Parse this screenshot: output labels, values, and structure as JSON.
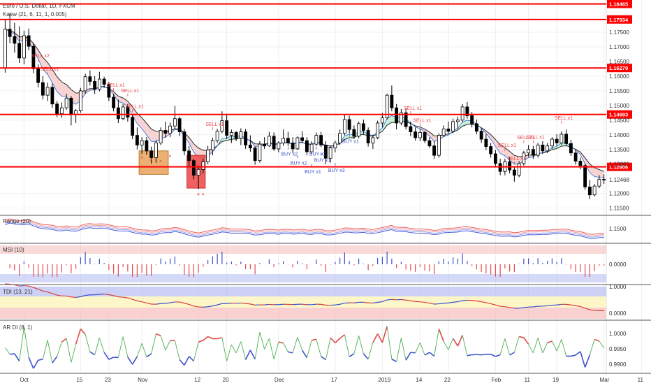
{
  "chart_data": {
    "type": "candlestick",
    "title": "Euro / U.S. Dollar, 1D, FXCM",
    "overlay_label": "Kaew (21, 6, 11, 1, 0.005)",
    "colors": {
      "up": "#ffffff",
      "down": "#000000",
      "wick": "#000000",
      "level_line": "#ff0000",
      "level_tag": "#ff0000",
      "cloud_bull": "#c9efd5",
      "cloud_bear": "#f7d3d3",
      "sell": "#e8474a",
      "buy": "#3c52c8",
      "zone_orange": "#e8a25a",
      "zone_red": "#ef4f4f",
      "band_red": "#f6b3b3",
      "band_blue": "#aab3ef",
      "band_yellow": "#fdf6c8"
    },
    "price_axis": {
      "range": [
        1.113,
        1.1855
      ],
      "ticks": [
        1.175,
        1.17,
        1.165,
        1.16,
        1.155,
        1.15,
        1.145,
        1.14,
        1.135,
        1.13,
        1.12,
        1.115
      ]
    },
    "levels": [
      1.18465,
      1.17934,
      1.16279,
      1.14693,
      1.12906
    ],
    "current_price_tag": 1.12468,
    "x_tick_labels": [
      "Oct",
      "15",
      "23",
      "Nov",
      "12",
      "20",
      "Dec",
      "17",
      "2019",
      "14",
      "22",
      "Feb",
      "11",
      "19",
      "Mar",
      "11"
    ],
    "x_tick_index": [
      4,
      16,
      22,
      29,
      41,
      47,
      58,
      70,
      80,
      88,
      94,
      104,
      111,
      117,
      127,
      135
    ],
    "candles": [
      [
        1.1628,
        1.1795,
        1.1612,
        1.176
      ],
      [
        1.176,
        1.1815,
        1.1712,
        1.1735
      ],
      [
        1.1735,
        1.1782,
        1.168,
        1.1712
      ],
      [
        1.1712,
        1.177,
        1.1645,
        1.1662
      ],
      [
        1.1662,
        1.1755,
        1.164,
        1.1738
      ],
      [
        1.1738,
        1.1762,
        1.1688,
        1.1702
      ],
      [
        1.1702,
        1.1712,
        1.161,
        1.1625
      ],
      [
        1.1625,
        1.164,
        1.1562,
        1.1578
      ],
      [
        1.1578,
        1.16,
        1.152,
        1.1535
      ],
      [
        1.1535,
        1.1578,
        1.1515,
        1.1562
      ],
      [
        1.1562,
        1.1575,
        1.1492,
        1.1505
      ],
      [
        1.1505,
        1.1515,
        1.146,
        1.1472
      ],
      [
        1.1472,
        1.151,
        1.1458,
        1.1492
      ],
      [
        1.1492,
        1.154,
        1.1485,
        1.1525
      ],
      [
        1.1525,
        1.1532,
        1.1432,
        1.147
      ],
      [
        1.147,
        1.1488,
        1.144,
        1.1482
      ],
      [
        1.1482,
        1.156,
        1.1475,
        1.155
      ],
      [
        1.155,
        1.1608,
        1.154,
        1.1598
      ],
      [
        1.1598,
        1.162,
        1.1568,
        1.1582
      ],
      [
        1.1582,
        1.16,
        1.154,
        1.1555
      ],
      [
        1.1555,
        1.1615,
        1.1548,
        1.159
      ],
      [
        1.159,
        1.1598,
        1.156,
        1.1572
      ],
      [
        1.1572,
        1.158,
        1.1515,
        1.1528
      ],
      [
        1.1528,
        1.154,
        1.148,
        1.1492
      ],
      [
        1.1492,
        1.152,
        1.144,
        1.1455
      ],
      [
        1.1455,
        1.1505,
        1.145,
        1.1495
      ],
      [
        1.1495,
        1.1505,
        1.1445,
        1.146
      ],
      [
        1.146,
        1.1468,
        1.1385,
        1.1398
      ],
      [
        1.1398,
        1.1425,
        1.135,
        1.1365
      ],
      [
        1.1365,
        1.1392,
        1.1335,
        1.138
      ],
      [
        1.138,
        1.1392,
        1.1332,
        1.1345
      ],
      [
        1.1345,
        1.136,
        1.1302,
        1.1322
      ],
      [
        1.1322,
        1.1382,
        1.1305,
        1.1372
      ],
      [
        1.1372,
        1.1425,
        1.1365,
        1.1415
      ],
      [
        1.1415,
        1.1445,
        1.139,
        1.1405
      ],
      [
        1.1405,
        1.1442,
        1.1392,
        1.143
      ],
      [
        1.143,
        1.1498,
        1.142,
        1.1455
      ],
      [
        1.1455,
        1.1462,
        1.1395,
        1.141
      ],
      [
        1.141,
        1.142,
        1.133,
        1.1345
      ],
      [
        1.1345,
        1.1362,
        1.129,
        1.1312
      ],
      [
        1.1312,
        1.1318,
        1.1248,
        1.1262
      ],
      [
        1.1262,
        1.1295,
        1.1215,
        1.1282
      ],
      [
        1.1282,
        1.1318,
        1.1268,
        1.1308
      ],
      [
        1.1308,
        1.1362,
        1.13,
        1.1348
      ],
      [
        1.1348,
        1.139,
        1.133,
        1.138
      ],
      [
        1.138,
        1.142,
        1.1372,
        1.1412
      ],
      [
        1.1412,
        1.148,
        1.1405,
        1.1448
      ],
      [
        1.1448,
        1.1472,
        1.1385,
        1.1398
      ],
      [
        1.1398,
        1.1418,
        1.1372,
        1.1408
      ],
      [
        1.1408,
        1.1412,
        1.1378,
        1.1388
      ],
      [
        1.1388,
        1.1422,
        1.1365,
        1.141
      ],
      [
        1.141,
        1.142,
        1.1352,
        1.1365
      ],
      [
        1.1365,
        1.1398,
        1.1342,
        1.1355
      ],
      [
        1.1355,
        1.136,
        1.1298,
        1.1312
      ],
      [
        1.1312,
        1.1378,
        1.1305,
        1.1368
      ],
      [
        1.1368,
        1.1392,
        1.1352,
        1.1362
      ],
      [
        1.1362,
        1.141,
        1.1358,
        1.1395
      ],
      [
        1.1395,
        1.1408,
        1.1345,
        1.1352
      ],
      [
        1.1352,
        1.1378,
        1.134,
        1.1372
      ],
      [
        1.1372,
        1.1418,
        1.1362,
        1.1388
      ],
      [
        1.1388,
        1.141,
        1.1362,
        1.1372
      ],
      [
        1.1372,
        1.1392,
        1.1338,
        1.1352
      ],
      [
        1.1352,
        1.1395,
        1.1348,
        1.139
      ],
      [
        1.139,
        1.1412,
        1.1372,
        1.138
      ],
      [
        1.138,
        1.1392,
        1.133,
        1.1342
      ],
      [
        1.1342,
        1.1378,
        1.1335,
        1.1368
      ],
      [
        1.1368,
        1.1408,
        1.1362,
        1.1398
      ],
      [
        1.1398,
        1.141,
        1.1358,
        1.1365
      ],
      [
        1.1365,
        1.1378,
        1.13,
        1.132
      ],
      [
        1.132,
        1.1362,
        1.1305,
        1.1355
      ],
      [
        1.1355,
        1.138,
        1.134,
        1.1372
      ],
      [
        1.1372,
        1.1418,
        1.1365,
        1.1405
      ],
      [
        1.1405,
        1.147,
        1.1398,
        1.1452
      ],
      [
        1.1452,
        1.1465,
        1.1405,
        1.1418
      ],
      [
        1.1418,
        1.1432,
        1.1385,
        1.1395
      ],
      [
        1.1395,
        1.1445,
        1.1388,
        1.1438
      ],
      [
        1.1438,
        1.1452,
        1.1402,
        1.1415
      ],
      [
        1.1415,
        1.1425,
        1.136,
        1.1372
      ],
      [
        1.1372,
        1.14,
        1.1352,
        1.139
      ],
      [
        1.139,
        1.1448,
        1.1385,
        1.144
      ],
      [
        1.144,
        1.1475,
        1.1425,
        1.1458
      ],
      [
        1.1458,
        1.154,
        1.1452,
        1.1535
      ],
      [
        1.1535,
        1.1568,
        1.148,
        1.1492
      ],
      [
        1.1492,
        1.1505,
        1.1418,
        1.144
      ],
      [
        1.144,
        1.1488,
        1.1432,
        1.1475
      ],
      [
        1.1475,
        1.149,
        1.1418,
        1.1428
      ],
      [
        1.1428,
        1.1445,
        1.1395,
        1.141
      ],
      [
        1.141,
        1.1425,
        1.138,
        1.139
      ],
      [
        1.139,
        1.142,
        1.1378,
        1.1408
      ],
      [
        1.1408,
        1.1412,
        1.1372,
        1.138
      ],
      [
        1.138,
        1.1392,
        1.1355,
        1.1362
      ],
      [
        1.1362,
        1.1378,
        1.1318,
        1.133
      ],
      [
        1.133,
        1.1405,
        1.1322,
        1.1398
      ],
      [
        1.1398,
        1.1432,
        1.1392,
        1.142
      ],
      [
        1.142,
        1.1445,
        1.1405,
        1.1412
      ],
      [
        1.1412,
        1.1455,
        1.1405,
        1.1445
      ],
      [
        1.1445,
        1.1462,
        1.142,
        1.145
      ],
      [
        1.145,
        1.1505,
        1.1442,
        1.1495
      ],
      [
        1.1495,
        1.1512,
        1.1455,
        1.1465
      ],
      [
        1.1465,
        1.1478,
        1.1425,
        1.1438
      ],
      [
        1.1438,
        1.1452,
        1.1402,
        1.1412
      ],
      [
        1.1412,
        1.1422,
        1.1372,
        1.1385
      ],
      [
        1.1385,
        1.1402,
        1.1348,
        1.136
      ],
      [
        1.136,
        1.1372,
        1.1322,
        1.1335
      ],
      [
        1.1335,
        1.1348,
        1.129,
        1.1302
      ],
      [
        1.1302,
        1.1318,
        1.1262,
        1.1275
      ],
      [
        1.1275,
        1.1318,
        1.1262,
        1.1308
      ],
      [
        1.1308,
        1.1325,
        1.1268,
        1.128
      ],
      [
        1.128,
        1.129,
        1.124,
        1.1262
      ],
      [
        1.1262,
        1.131,
        1.1255,
        1.1302
      ],
      [
        1.1302,
        1.1345,
        1.1295,
        1.1338
      ],
      [
        1.1338,
        1.1365,
        1.1325,
        1.135
      ],
      [
        1.135,
        1.1362,
        1.1318,
        1.133
      ],
      [
        1.133,
        1.1372,
        1.1322,
        1.1365
      ],
      [
        1.1365,
        1.1378,
        1.1335,
        1.1345
      ],
      [
        1.1345,
        1.1372,
        1.1338,
        1.1362
      ],
      [
        1.1362,
        1.1392,
        1.1352,
        1.1385
      ],
      [
        1.1385,
        1.1402,
        1.1362,
        1.1372
      ],
      [
        1.1372,
        1.1412,
        1.1365,
        1.1402
      ],
      [
        1.1402,
        1.1418,
        1.1362,
        1.137
      ],
      [
        1.137,
        1.1382,
        1.1328,
        1.1338
      ],
      [
        1.1338,
        1.135,
        1.1298,
        1.131
      ],
      [
        1.131,
        1.1322,
        1.1282,
        1.1295
      ],
      [
        1.1295,
        1.1302,
        1.1212,
        1.1222
      ],
      [
        1.1222,
        1.1245,
        1.118,
        1.1195
      ],
      [
        1.1195,
        1.1232,
        1.119,
        1.1225
      ],
      [
        1.1225,
        1.1262,
        1.1218,
        1.1248
      ],
      [
        1.1248,
        1.1265,
        1.1232,
        1.1246
      ]
    ],
    "signals": [
      {
        "i": 7,
        "type": "sell",
        "text": "SELL x2"
      },
      {
        "i": 9,
        "type": "sell",
        "text": "SELL x1"
      },
      {
        "i": 23,
        "type": "sell",
        "text": "SELL x1"
      },
      {
        "i": 26,
        "type": "sell",
        "text": "SELL x1"
      },
      {
        "i": 27,
        "type": "sell",
        "text": "SELL x1"
      },
      {
        "i": 44,
        "type": "sell",
        "text": "SELL x1"
      },
      {
        "i": 60,
        "type": "buy",
        "text": "BUY x2"
      },
      {
        "i": 62,
        "type": "buy",
        "text": "BUY x2"
      },
      {
        "i": 65,
        "type": "buy",
        "text": "BUY x1"
      },
      {
        "i": 66,
        "type": "buy",
        "text": "BUY x2"
      },
      {
        "i": 67,
        "type": "buy",
        "text": "BUY x1"
      },
      {
        "i": 70,
        "type": "buy",
        "text": "BUY x3"
      },
      {
        "i": 73,
        "type": "buy",
        "text": "BUY x1"
      },
      {
        "i": 86,
        "type": "sell",
        "text": "SELL x1"
      },
      {
        "i": 88,
        "type": "sell",
        "text": "SELL x1"
      },
      {
        "i": 106,
        "type": "sell",
        "text": "SELL x1"
      },
      {
        "i": 108,
        "type": "sell",
        "text": "SELL x1"
      },
      {
        "i": 110,
        "type": "sell",
        "text": "SELL x1"
      },
      {
        "i": 112,
        "type": "sell",
        "text": "SELL x1"
      },
      {
        "i": 118,
        "type": "sell",
        "text": "SELL x1"
      }
    ],
    "indicators": [
      {
        "name": "Range (20)",
        "tick": "1.1500"
      },
      {
        "name": "MSI (10)",
        "tick": "0.0000"
      },
      {
        "name": "TDI (13, 21)",
        "ticks": [
          "1.0000",
          "0.0000"
        ]
      },
      {
        "name": "AR DI (8, 1)",
        "ticks": [
          "1.0000",
          "0.9950",
          "0.9900"
        ]
      }
    ]
  }
}
